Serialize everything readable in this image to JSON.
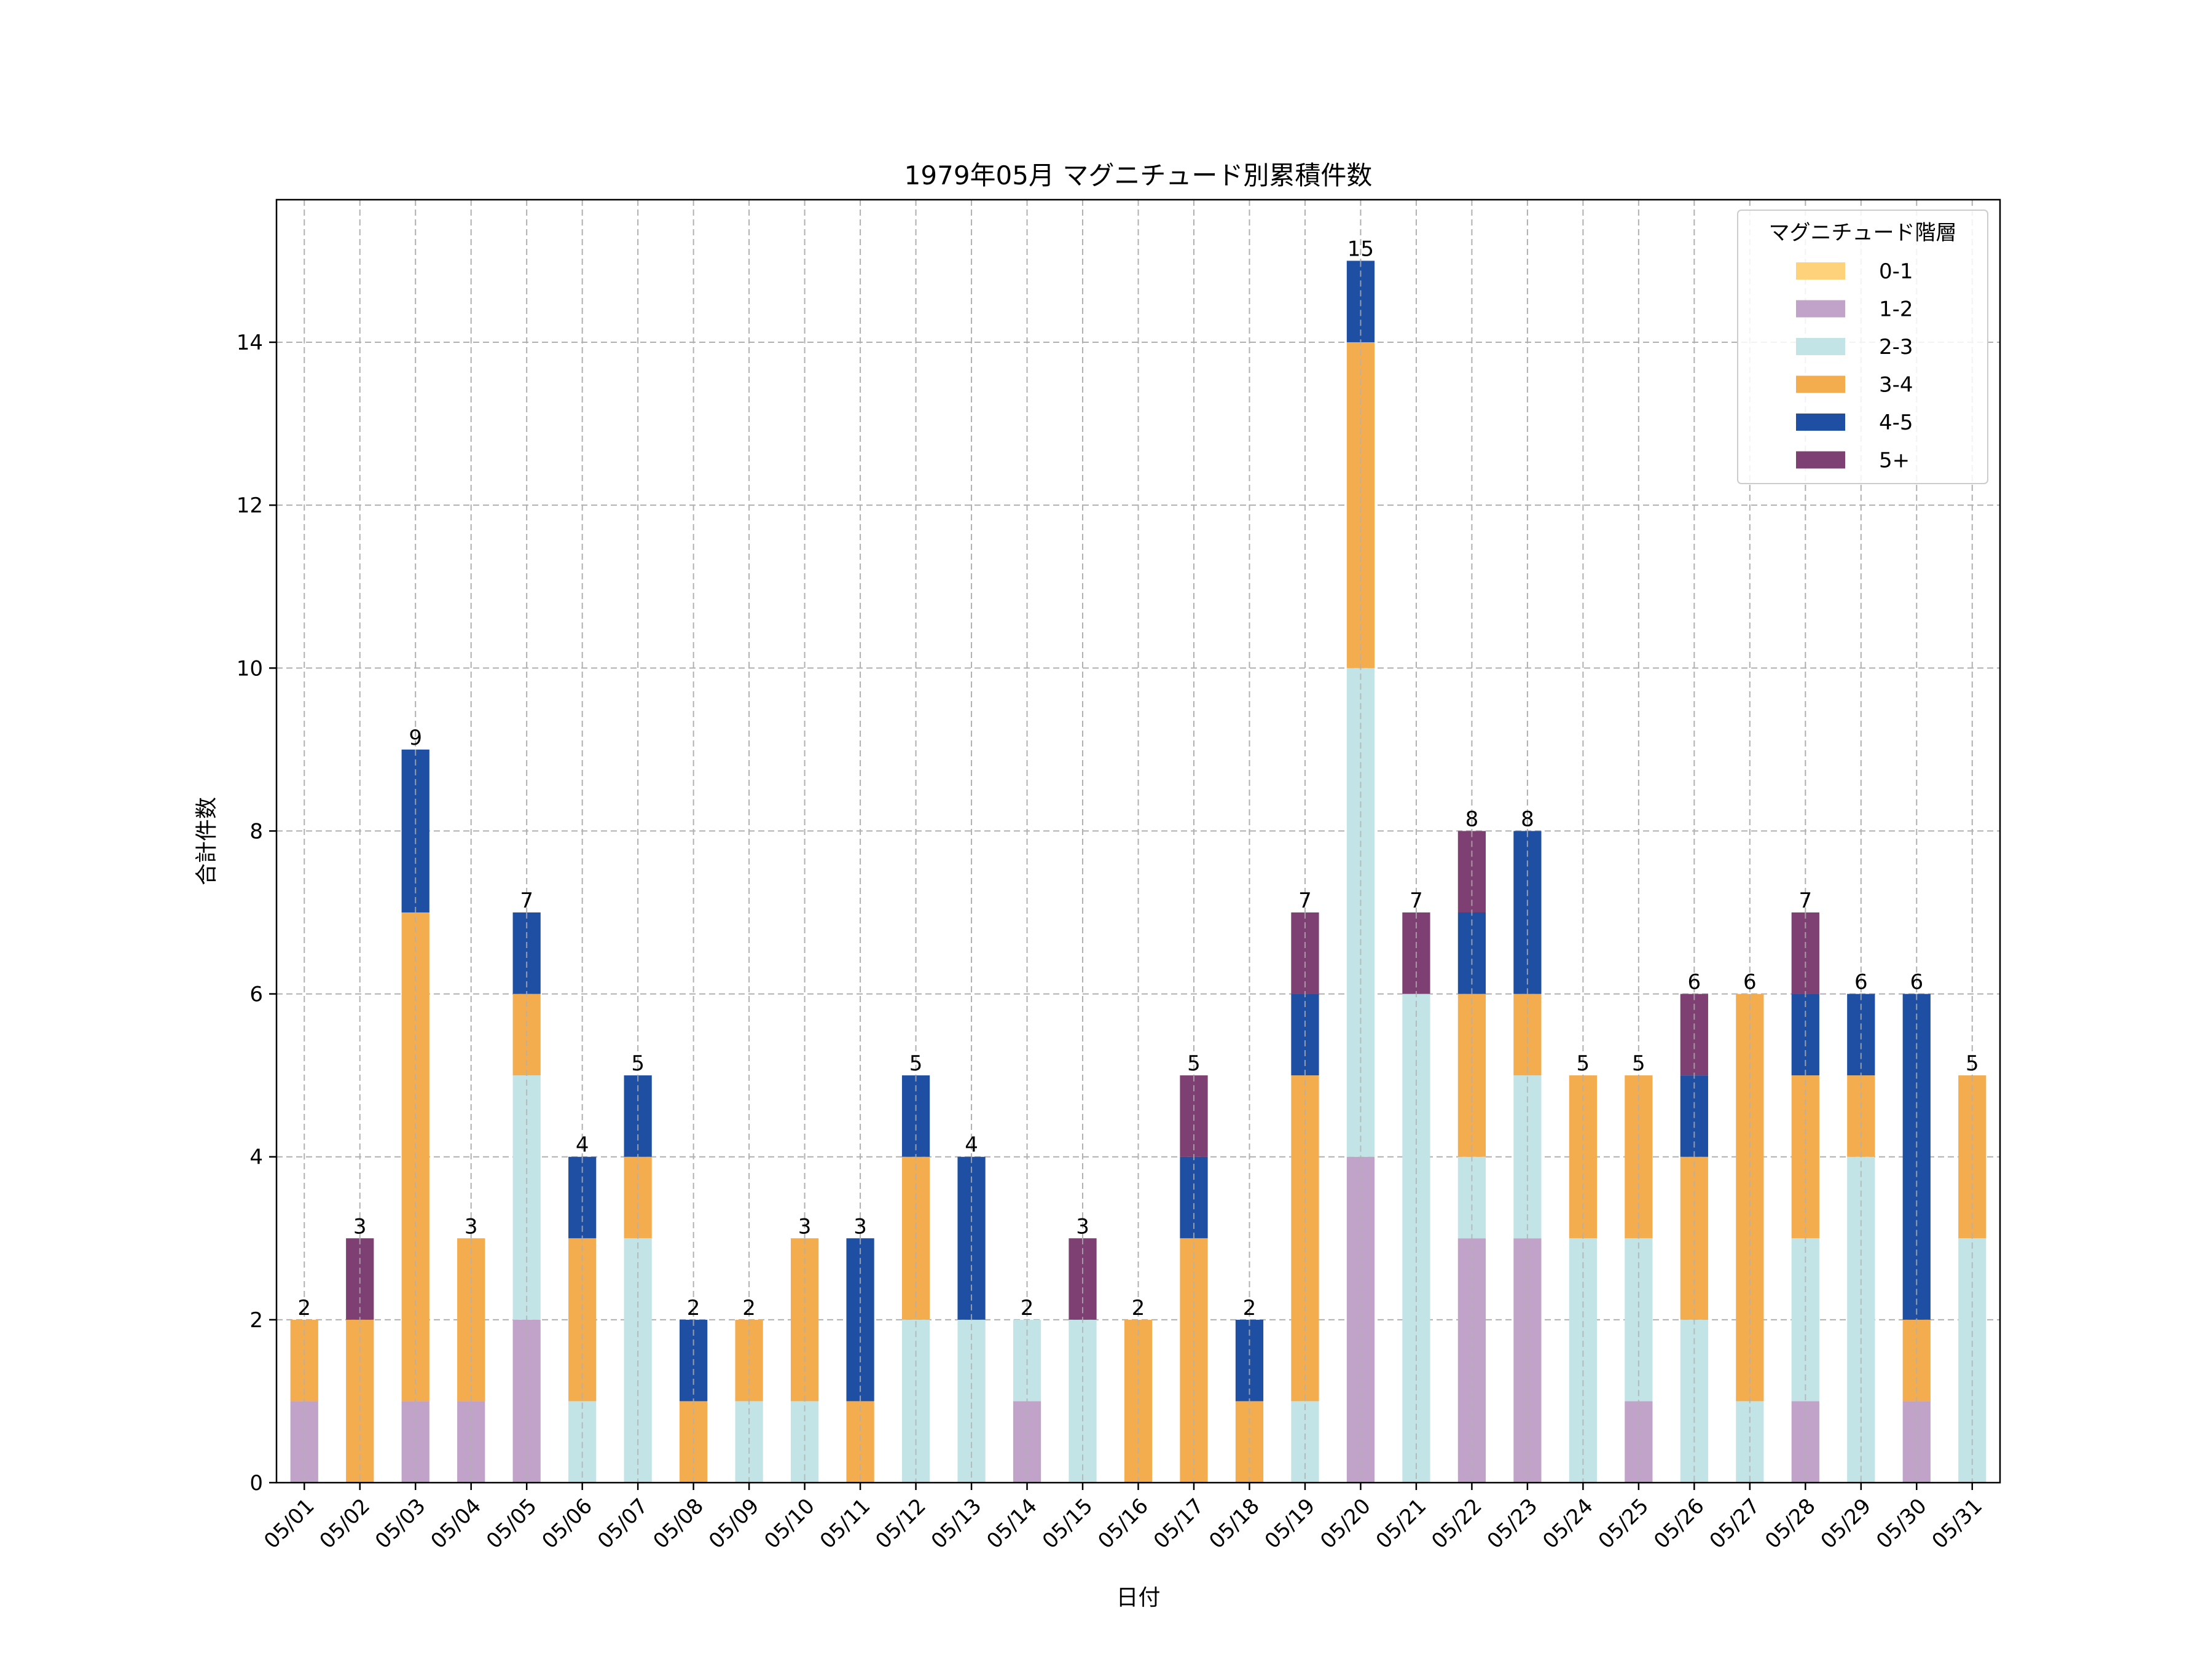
{
  "chart_data": {
    "type": "bar",
    "stacked": true,
    "title": "1979年05月 マグニチュード別累積件数",
    "xlabel": "日付",
    "ylabel": "合計件数",
    "ylim": [
      0,
      15.75
    ],
    "yticks": [
      0,
      2,
      4,
      6,
      8,
      10,
      12,
      14
    ],
    "grid": true,
    "legend": {
      "title": "マグニチュード階層",
      "placement": "top-right"
    },
    "categories": [
      "05/01",
      "05/02",
      "05/03",
      "05/04",
      "05/05",
      "05/06",
      "05/07",
      "05/08",
      "05/09",
      "05/10",
      "05/11",
      "05/12",
      "05/13",
      "05/14",
      "05/15",
      "05/16",
      "05/17",
      "05/18",
      "05/19",
      "05/20",
      "05/21",
      "05/22",
      "05/23",
      "05/24",
      "05/25",
      "05/26",
      "05/27",
      "05/28",
      "05/29",
      "05/30",
      "05/31"
    ],
    "series": [
      {
        "name": "0-1",
        "color": "#fdd27a",
        "values": [
          0,
          0,
          0,
          0,
          0,
          0,
          0,
          0,
          0,
          0,
          0,
          0,
          0,
          0,
          0,
          0,
          0,
          0,
          0,
          0,
          0,
          0,
          0,
          0,
          0,
          0,
          0,
          0,
          0,
          0,
          0
        ]
      },
      {
        "name": "1-2",
        "color": "#c1a3c9",
        "values": [
          1,
          0,
          1,
          1,
          2,
          0,
          0,
          0,
          0,
          0,
          0,
          0,
          0,
          1,
          0,
          0,
          0,
          0,
          0,
          4,
          0,
          3,
          3,
          0,
          1,
          0,
          0,
          1,
          0,
          1,
          0
        ]
      },
      {
        "name": "2-3",
        "color": "#c2e4e6",
        "values": [
          0,
          0,
          0,
          0,
          3,
          1,
          3,
          0,
          1,
          1,
          0,
          2,
          2,
          1,
          2,
          0,
          0,
          0,
          1,
          6,
          6,
          1,
          2,
          3,
          2,
          2,
          1,
          2,
          4,
          0,
          3
        ]
      },
      {
        "name": "3-4",
        "color": "#f3ad4f",
        "values": [
          1,
          2,
          6,
          2,
          1,
          2,
          1,
          1,
          1,
          2,
          1,
          2,
          0,
          0,
          0,
          2,
          3,
          1,
          4,
          4,
          0,
          2,
          1,
          2,
          2,
          2,
          5,
          2,
          1,
          1,
          2
        ]
      },
      {
        "name": "4-5",
        "color": "#1f4fa3",
        "values": [
          0,
          0,
          2,
          0,
          1,
          1,
          1,
          1,
          0,
          0,
          2,
          1,
          2,
          0,
          0,
          0,
          1,
          1,
          1,
          1,
          0,
          1,
          2,
          0,
          0,
          1,
          0,
          1,
          1,
          4,
          0
        ]
      },
      {
        "name": "5+",
        "color": "#7e3f72",
        "values": [
          0,
          1,
          0,
          0,
          0,
          0,
          0,
          0,
          0,
          0,
          0,
          0,
          0,
          0,
          1,
          0,
          1,
          0,
          1,
          0,
          1,
          1,
          0,
          0,
          0,
          1,
          0,
          1,
          0,
          0,
          0
        ]
      }
    ],
    "totals": [
      2,
      3,
      9,
      3,
      7,
      4,
      5,
      2,
      2,
      3,
      3,
      5,
      4,
      2,
      3,
      2,
      5,
      2,
      7,
      15,
      7,
      8,
      8,
      5,
      5,
      6,
      6,
      7,
      6,
      6,
      5
    ]
  }
}
